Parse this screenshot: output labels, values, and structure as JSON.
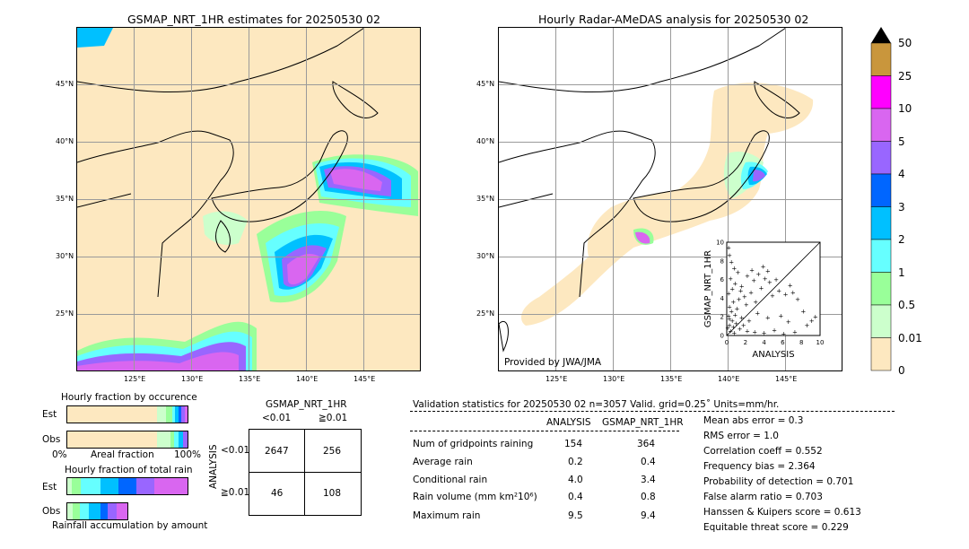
{
  "left_map": {
    "title": "GSMAP_NRT_1HR estimates for 20250530 02",
    "lat_labels": [
      "45°N",
      "40°N",
      "35°N",
      "30°N",
      "25°N"
    ],
    "lon_labels": [
      "125°E",
      "130°E",
      "135°E",
      "140°E",
      "145°E"
    ]
  },
  "right_map": {
    "title": "Hourly Radar-AMeDAS analysis for 20250530 02",
    "lat_labels": [
      "45°N",
      "40°N",
      "35°N",
      "30°N",
      "25°N"
    ],
    "lon_labels": [
      "125°E",
      "130°E",
      "135°E",
      "140°E",
      "145°E"
    ],
    "credit": "Provided by JWA/JMA"
  },
  "colorbar": {
    "labels": [
      "50",
      "25",
      "10",
      "5",
      "4",
      "3",
      "2",
      "1",
      "0.5",
      "0.01",
      "0"
    ],
    "colors": [
      "#c9963c",
      "#ff00ff",
      "#d966f0",
      "#9966ff",
      "#0066ff",
      "#00c0ff",
      "#66ffff",
      "#99ff99",
      "#ccffcc",
      "#fde8c0"
    ]
  },
  "chart_data": [
    {
      "type": "scatter",
      "title": "",
      "xlabel": "ANALYSIS",
      "ylabel": "GSMAP_NRT_1HR",
      "xlim": [
        0,
        10
      ],
      "ylim": [
        0,
        10
      ],
      "xticks": [
        "0",
        "2",
        "4",
        "6",
        "8",
        "10"
      ],
      "yticks": [
        "0",
        "2",
        "4",
        "6",
        "8",
        "10"
      ],
      "marker": "+",
      "points": [
        [
          0.2,
          9.4
        ],
        [
          0.3,
          8.6
        ],
        [
          0.5,
          7.9
        ],
        [
          0.8,
          7.2
        ],
        [
          1.2,
          6.8
        ],
        [
          0.4,
          6.1
        ],
        [
          0.9,
          5.6
        ],
        [
          1.6,
          5.3
        ],
        [
          2.2,
          6.4
        ],
        [
          2.9,
          5.9
        ],
        [
          3.4,
          6.6
        ],
        [
          4.1,
          6.1
        ],
        [
          4.6,
          5.7
        ],
        [
          5.3,
          6.0
        ],
        [
          3.7,
          5.1
        ],
        [
          2.6,
          4.6
        ],
        [
          1.9,
          4.2
        ],
        [
          1.3,
          3.9
        ],
        [
          0.7,
          3.6
        ],
        [
          0.3,
          3.1
        ],
        [
          1.1,
          2.9
        ],
        [
          2.1,
          3.3
        ],
        [
          3.1,
          3.6
        ],
        [
          4.9,
          4.3
        ],
        [
          5.6,
          4.8
        ],
        [
          6.3,
          4.4
        ],
        [
          7.1,
          4.6
        ],
        [
          6.8,
          5.4
        ],
        [
          7.6,
          3.9
        ],
        [
          8.2,
          2.6
        ],
        [
          9.1,
          1.6
        ],
        [
          9.5,
          2.0
        ],
        [
          8.6,
          1.1
        ],
        [
          6.6,
          1.5
        ],
        [
          5.8,
          2.1
        ],
        [
          4.4,
          1.9
        ],
        [
          3.3,
          2.4
        ],
        [
          2.4,
          1.6
        ],
        [
          1.6,
          1.9
        ],
        [
          0.9,
          2.2
        ],
        [
          0.5,
          2.6
        ],
        [
          0.2,
          2.1
        ],
        [
          0.6,
          1.6
        ],
        [
          1.0,
          1.3
        ],
        [
          0.3,
          1.1
        ],
        [
          0.7,
          0.9
        ],
        [
          1.4,
          0.7
        ],
        [
          2.2,
          0.5
        ],
        [
          3.0,
          0.4
        ],
        [
          4.0,
          0.3
        ],
        [
          5.1,
          0.6
        ],
        [
          6.1,
          0.2
        ],
        [
          7.3,
          0.4
        ],
        [
          0.1,
          0.8
        ],
        [
          0.4,
          0.5
        ],
        [
          0.8,
          0.3
        ],
        [
          0.2,
          4.5
        ],
        [
          0.6,
          5.0
        ],
        [
          1.5,
          4.8
        ],
        [
          2.7,
          7.0
        ],
        [
          3.9,
          7.4
        ],
        [
          4.4,
          6.9
        ],
        [
          0.3,
          1.8
        ],
        [
          1.8,
          1.1
        ]
      ]
    },
    {
      "type": "bar",
      "title": "Hourly fraction by occurence",
      "categories": [
        "Est",
        "Obs"
      ],
      "xlabel": "Areal fraction",
      "xtick_labels": [
        "0%",
        "100%"
      ]
    },
    {
      "type": "bar",
      "title": "Hourly fraction of total rain",
      "categories": [
        "Est",
        "Obs"
      ],
      "xlabel": "Rainfall accumulation by amount"
    }
  ],
  "contingency": {
    "col_title": "GSMAP_NRT_1HR",
    "col_labels": [
      "<0.01",
      "≧0.01"
    ],
    "row_title": "ANALYSIS",
    "row_labels": [
      "<0.01",
      "≧0.01"
    ],
    "cells": [
      [
        "2647",
        "256"
      ],
      [
        "46",
        "108"
      ]
    ]
  },
  "validation": {
    "header": "Validation statistics for 20250530 02  n=3057 Valid. grid=0.25˚ Units=mm/hr.",
    "col_analysis": "ANALYSIS",
    "col_gsmap": "GSMAP_NRT_1HR",
    "rows": [
      {
        "label": "Num of gridpoints raining",
        "a": "154",
        "g": "364"
      },
      {
        "label": "Average rain",
        "a": "0.2",
        "g": "0.4"
      },
      {
        "label": "Conditional rain",
        "a": "4.0",
        "g": "3.4"
      },
      {
        "label": "Rain volume (mm km²10⁶)",
        "a": "0.4",
        "g": "0.8"
      },
      {
        "label": "Maximum rain",
        "a": "9.5",
        "g": "9.4"
      }
    ],
    "scores": [
      "Mean abs error =    0.3",
      "RMS error =    1.0",
      "Correlation coeff =  0.552",
      "Frequency bias =  2.364",
      "Probability of detection =  0.701",
      "False alarm ratio =  0.703",
      "Hanssen & Kuipers score =  0.613",
      "Equitable threat score =  0.229"
    ]
  }
}
